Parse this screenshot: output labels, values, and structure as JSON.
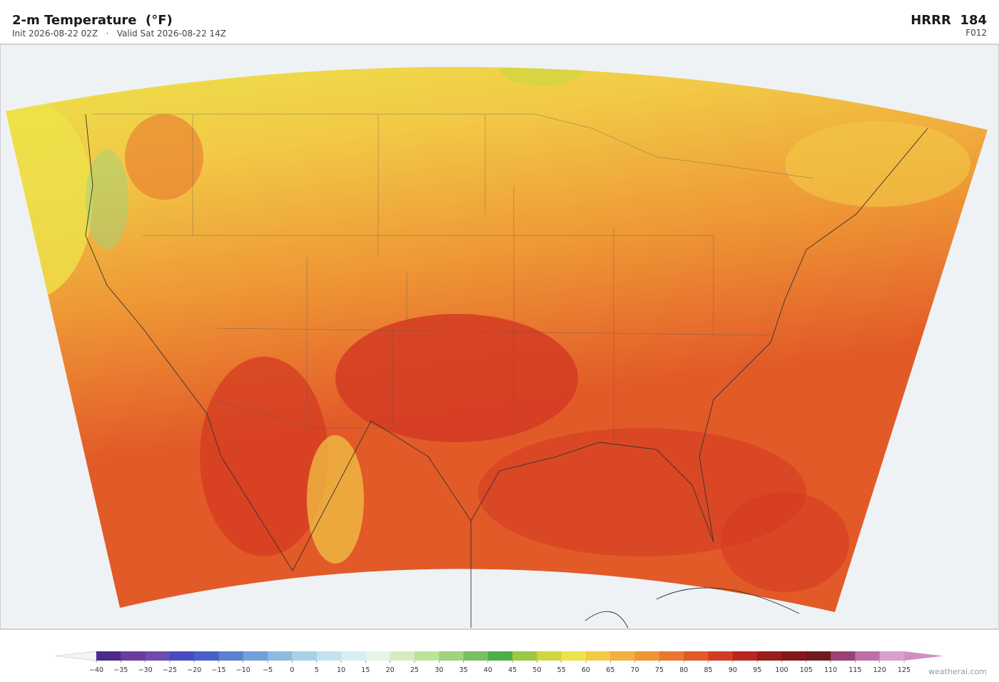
{
  "header": {
    "title": "2-m Temperature  (°F)",
    "subtitle": "Init 2026-08-22 02Z   ·   Valid Sat 2026-08-22 14Z",
    "model": "HRRR  184",
    "forecast_hour": "F012"
  },
  "colorbar": {
    "range": [
      -40,
      125
    ],
    "ticks": [
      {
        "value": -40,
        "label": "−40"
      },
      {
        "value": -35,
        "label": "−35"
      },
      {
        "value": -30,
        "label": "−30"
      },
      {
        "value": -25,
        "label": "−25"
      },
      {
        "value": -20,
        "label": "−20"
      },
      {
        "value": -15,
        "label": "−15"
      },
      {
        "value": -10,
        "label": "−10"
      },
      {
        "value": -5,
        "label": "−5"
      },
      0,
      5,
      10,
      15,
      20,
      25,
      30,
      35,
      40,
      45,
      50,
      55,
      60,
      65,
      70,
      75,
      80,
      85,
      90,
      95,
      100,
      105,
      110,
      115,
      120,
      125
    ],
    "colors": [
      "#4b2a8c",
      "#6a3d9a",
      "#6f4bb0",
      "#4a4ac0",
      "#4a5fc8",
      "#5b82d0",
      "#72a0d8",
      "#8fbae0",
      "#a9d1e8",
      "#c2e2ee",
      "#d7eef2",
      "#e6f5e8",
      "#d6ecc0",
      "#bde29a",
      "#9dd47c",
      "#77c160",
      "#4cad4a",
      "#9cc846",
      "#cfd640",
      "#ede24a",
      "#f2c946",
      "#f1b040",
      "#ee9535",
      "#e9772e",
      "#e25a28",
      "#d43b22",
      "#b72620",
      "#9a1c1c",
      "#831818",
      "#6e1a1e",
      "#9a4274",
      "#bb70a8",
      "#d8a0cc"
    ],
    "under_color": "#f4f4f4",
    "over_color": "#cf8fc4"
  },
  "credit": "weatherai.com"
}
